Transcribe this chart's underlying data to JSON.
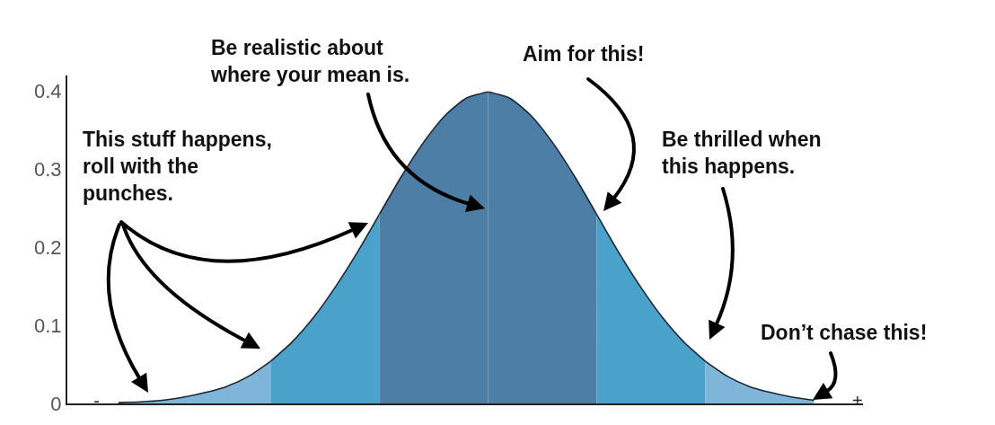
{
  "chart_data": {
    "type": "area",
    "categories": [
      "-",
      null,
      null,
      null,
      null,
      null,
      null,
      null,
      null,
      null,
      null,
      null,
      null,
      null,
      null,
      null,
      null,
      null,
      null,
      null,
      null,
      null,
      null,
      null,
      null,
      null,
      null,
      null,
      null,
      null,
      null,
      null,
      null,
      null,
      null,
      "+"
    ],
    "ylim": [
      0,
      0.42
    ],
    "yticks": [
      0,
      0.1,
      0.2,
      0.3,
      0.4
    ],
    "grid": false,
    "series": [
      {
        "color": "#7fb5d8",
        "values": [
          null,
          0.001,
          0.002,
          0.004,
          0.008,
          0.014,
          0.022,
          0.035,
          0.054,
          null,
          null,
          null,
          null,
          null,
          null,
          null,
          null,
          null,
          null,
          null,
          null,
          null,
          null,
          null,
          null,
          null,
          null,
          null,
          null,
          null,
          null,
          null,
          null,
          null,
          null,
          null
        ]
      },
      {
        "color": "#4aa2cb",
        "values": [
          null,
          null,
          null,
          null,
          null,
          null,
          null,
          null,
          0.054,
          0.079,
          0.111,
          0.15,
          0.194,
          0.242,
          null,
          null,
          null,
          null,
          null,
          null,
          null,
          null,
          null,
          null,
          null,
          null,
          null,
          null,
          null,
          null,
          null,
          null,
          null,
          null,
          null,
          null
        ]
      },
      {
        "color": "#4d7ea5",
        "values": [
          null,
          null,
          null,
          null,
          null,
          null,
          null,
          null,
          null,
          null,
          null,
          null,
          null,
          0.242,
          0.29,
          0.333,
          0.368,
          0.391,
          0.399,
          null,
          null,
          null,
          null,
          null,
          null,
          null,
          null,
          null,
          null,
          null,
          null,
          null,
          null,
          null,
          null,
          null
        ]
      },
      {
        "color": "#4d7ea5",
        "values": [
          null,
          null,
          null,
          null,
          null,
          null,
          null,
          null,
          null,
          null,
          null,
          null,
          null,
          null,
          null,
          null,
          null,
          null,
          0.399,
          0.391,
          0.368,
          0.333,
          0.29,
          0.242,
          null,
          null,
          null,
          null,
          null,
          null,
          null,
          null,
          null,
          null,
          null,
          null
        ]
      },
      {
        "color": "#4aa2cb",
        "values": [
          null,
          null,
          null,
          null,
          null,
          null,
          null,
          null,
          null,
          null,
          null,
          null,
          null,
          null,
          null,
          null,
          null,
          null,
          null,
          null,
          null,
          null,
          null,
          0.242,
          0.194,
          0.15,
          0.111,
          0.079,
          0.054,
          null,
          null,
          null,
          null,
          null,
          null,
          null
        ]
      },
      {
        "color": "#7fb5d8",
        "values": [
          null,
          null,
          null,
          null,
          null,
          null,
          null,
          null,
          null,
          null,
          null,
          null,
          null,
          null,
          null,
          null,
          null,
          null,
          null,
          null,
          null,
          null,
          null,
          null,
          null,
          null,
          null,
          null,
          0.054,
          0.035,
          0.022,
          0.014,
          0.008,
          0.004,
          null,
          null
        ]
      }
    ],
    "annotations": [
      "This stuff happens,\nroll with the\npunches.",
      "Be realistic about\nwhere your mean is.",
      "Aim for this!",
      "Be thrilled when\nthis happens.",
      "Don’t chase this!"
    ]
  }
}
